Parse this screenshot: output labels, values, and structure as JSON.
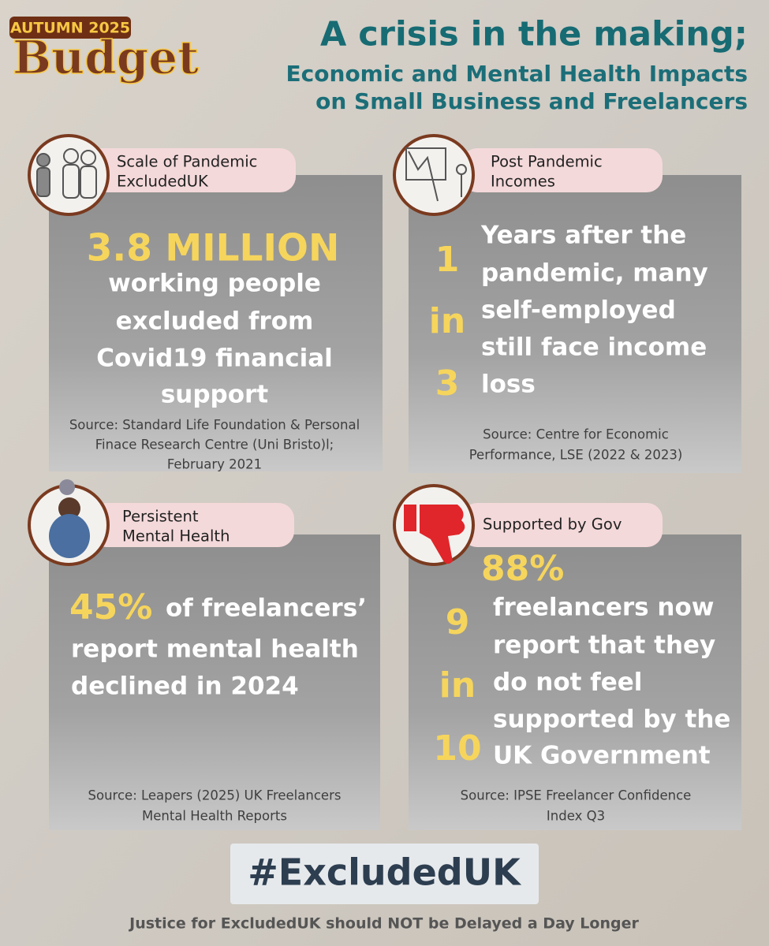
{
  "badge": {
    "top": "AUTUMN 2025",
    "bottom": "Budget"
  },
  "header": {
    "title": "A crisis in the making;",
    "subtitle_lines": [
      "Economic and Mental Health Impacts",
      "on Small Business and Freelancers"
    ]
  },
  "panels": [
    {
      "label_lines": [
        "Scale of Pandemic",
        "ExcludedUK"
      ],
      "highlight": "3.8 MILLION",
      "text_lines": [
        "working people",
        "excluded from",
        "Covid19 financial",
        "support"
      ],
      "source_lines": [
        "Source: Standard Life Foundation & Personal",
        "Finace Research Centre (Uni Bristo)l;",
        "February 2021"
      ]
    },
    {
      "label_lines": [
        "Post Pandemic",
        "Incomes"
      ],
      "ratio": [
        "1",
        "in",
        "3"
      ],
      "text_lines": [
        "Years after the",
        "pandemic, many",
        "self-employed",
        "still face income",
        "loss"
      ],
      "source_lines": [
        "Source: Centre for Economic",
        "Performance, LSE (2022 & 2023)"
      ]
    },
    {
      "label_lines": [
        "Persistent",
        "Mental Health"
      ],
      "highlight": "45%",
      "text_lines": [
        "of freelancers’",
        "report mental health",
        "declined in 2024"
      ],
      "source_lines": [
        "Source: Leapers (2025) UK Freelancers",
        "Mental Health Reports"
      ]
    },
    {
      "label_lines": [
        "Supported by Gov"
      ],
      "highlight": "88%",
      "ratio": [
        "9",
        "in",
        "10"
      ],
      "text_lines": [
        "freelancers now",
        "report that they",
        "do not feel",
        "supported by the",
        "UK Government"
      ],
      "source_lines": [
        "Source: IPSE Freelancer Confidence",
        "Index Q3"
      ]
    }
  ],
  "hashtag": "#ExcludedUK",
  "footer": "Justice for ExcludedUK should NOT be Delayed a Day Longer"
}
